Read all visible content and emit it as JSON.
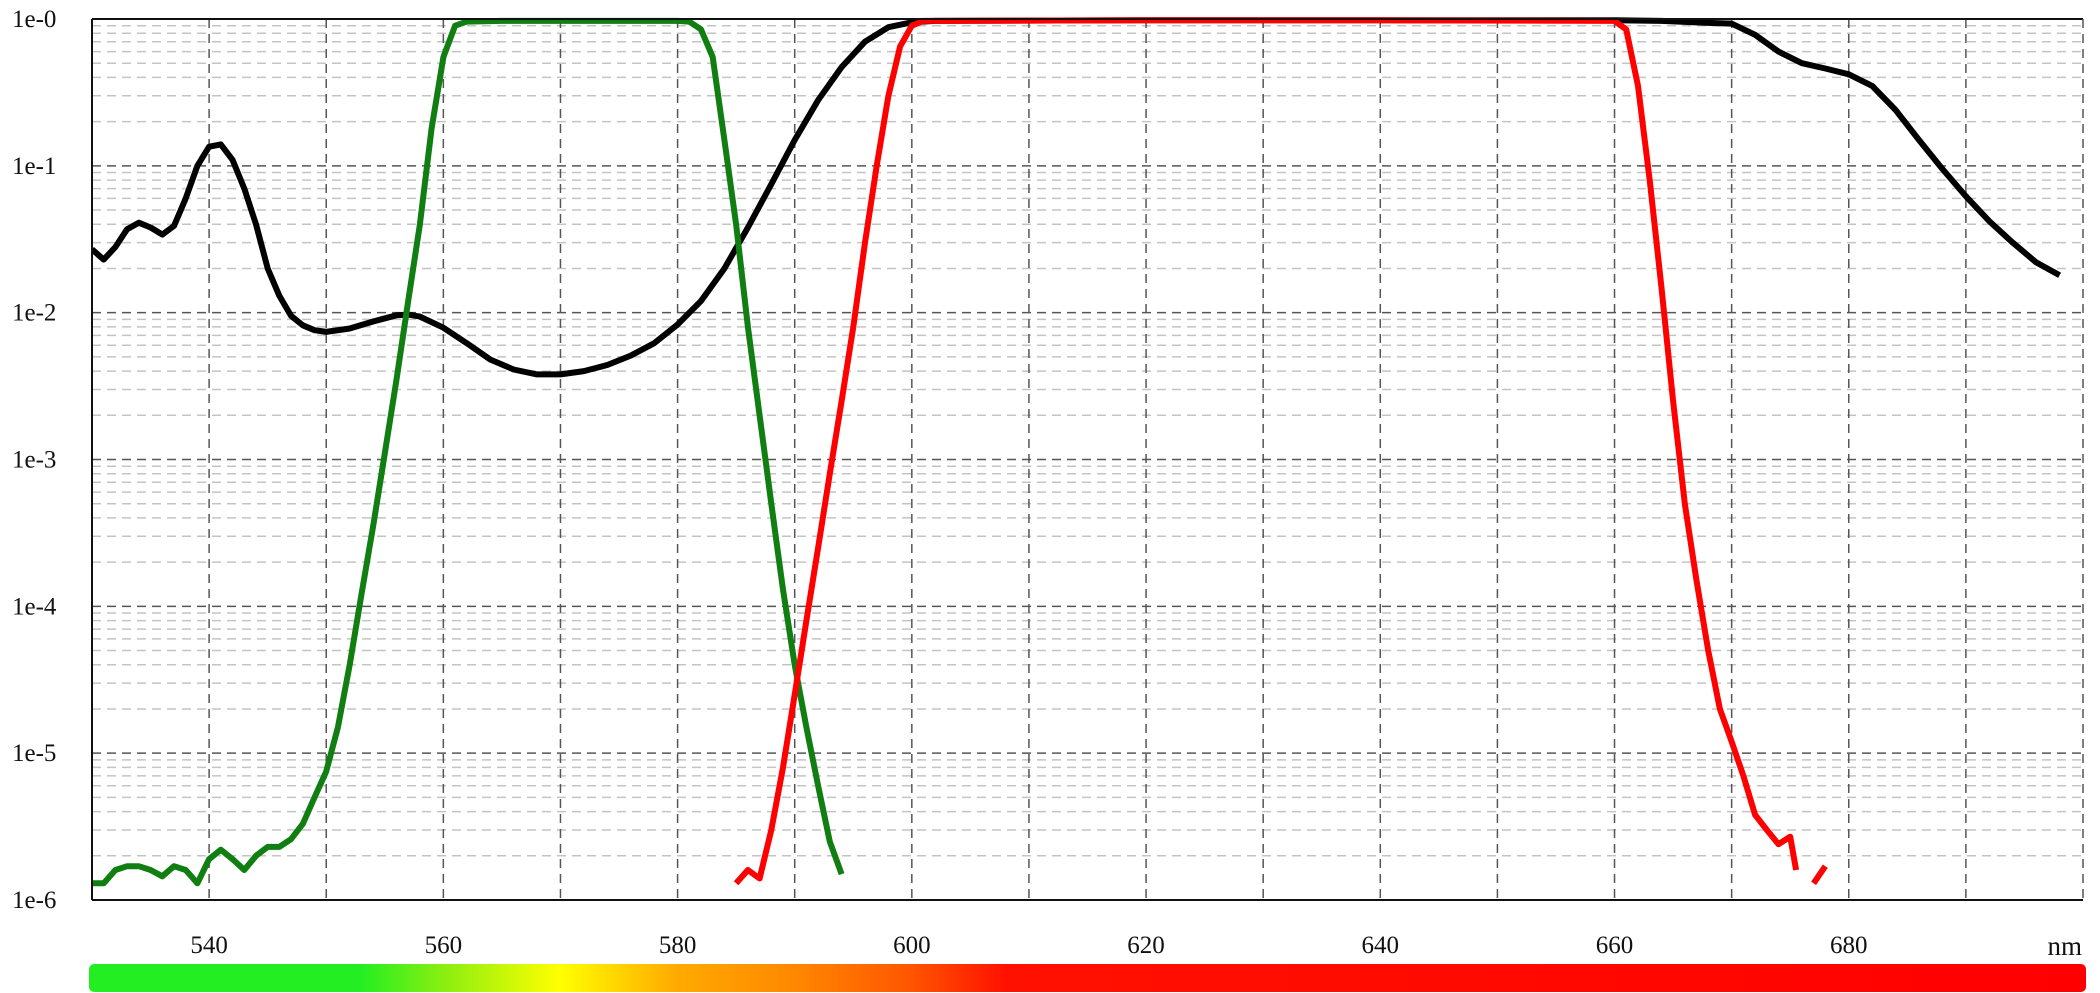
{
  "chart_data": {
    "type": "line",
    "xlabel": "nm",
    "ylabel": "",
    "title": "",
    "xlim": [
      530,
      700
    ],
    "ylim": [
      1e-06,
      1
    ],
    "y_scale": "log",
    "x_ticks": [
      540,
      560,
      580,
      600,
      620,
      640,
      660,
      680
    ],
    "x_tick_labels": [
      "540",
      "560",
      "580",
      "600",
      "620",
      "640",
      "660",
      "680"
    ],
    "y_ticks": [
      1,
      0.1,
      0.01,
      0.001,
      0.0001,
      1e-05,
      1e-06
    ],
    "y_tick_labels": [
      "1e-0",
      "1e-1",
      "1e-2",
      "1e-3",
      "1e-4",
      "1e-5",
      "1e-6"
    ],
    "grid": true,
    "spectrum_bar": {
      "stops": [
        {
          "nm": 530,
          "color": "#22ee22"
        },
        {
          "nm": 553,
          "color": "#22ee22"
        },
        {
          "nm": 560,
          "color": "#88ee11"
        },
        {
          "nm": 570,
          "color": "#ffff00"
        },
        {
          "nm": 580,
          "color": "#ffaa00"
        },
        {
          "nm": 590,
          "color": "#ff8800"
        },
        {
          "nm": 600,
          "color": "#ff5500"
        },
        {
          "nm": 608,
          "color": "#ff1100"
        },
        {
          "nm": 700,
          "color": "#ff0000"
        }
      ]
    },
    "series": [
      {
        "color": "#000000",
        "points": [
          [
            530,
            0.027
          ],
          [
            531,
            0.023
          ],
          [
            532,
            0.028
          ],
          [
            533,
            0.037
          ],
          [
            534,
            0.041
          ],
          [
            535,
            0.038
          ],
          [
            536,
            0.034
          ],
          [
            537,
            0.039
          ],
          [
            538,
            0.06
          ],
          [
            539,
            0.1
          ],
          [
            540,
            0.135
          ],
          [
            541,
            0.14
          ],
          [
            542,
            0.11
          ],
          [
            543,
            0.07
          ],
          [
            544,
            0.04
          ],
          [
            545,
            0.02
          ],
          [
            546,
            0.013
          ],
          [
            547,
            0.0095
          ],
          [
            548,
            0.0082
          ],
          [
            549,
            0.0076
          ],
          [
            550,
            0.0074
          ],
          [
            552,
            0.0078
          ],
          [
            554,
            0.0087
          ],
          [
            556,
            0.0096
          ],
          [
            557,
            0.0097
          ],
          [
            558,
            0.0094
          ],
          [
            560,
            0.0079
          ],
          [
            562,
            0.0062
          ],
          [
            564,
            0.0048
          ],
          [
            566,
            0.0041
          ],
          [
            568,
            0.0038
          ],
          [
            570,
            0.0038
          ],
          [
            572,
            0.004
          ],
          [
            574,
            0.0044
          ],
          [
            576,
            0.0051
          ],
          [
            578,
            0.0062
          ],
          [
            580,
            0.0083
          ],
          [
            582,
            0.012
          ],
          [
            584,
            0.02
          ],
          [
            586,
            0.038
          ],
          [
            588,
            0.075
          ],
          [
            590,
            0.15
          ],
          [
            592,
            0.28
          ],
          [
            594,
            0.47
          ],
          [
            596,
            0.7
          ],
          [
            598,
            0.88
          ],
          [
            600,
            0.95
          ],
          [
            602,
            0.97
          ],
          [
            620,
            0.98
          ],
          [
            640,
            0.98
          ],
          [
            660,
            0.98
          ],
          [
            664,
            0.97
          ],
          [
            668,
            0.94
          ],
          [
            670,
            0.93
          ],
          [
            672,
            0.78
          ],
          [
            674,
            0.6
          ],
          [
            676,
            0.5
          ],
          [
            678,
            0.46
          ],
          [
            680,
            0.42
          ],
          [
            682,
            0.35
          ],
          [
            684,
            0.24
          ],
          [
            686,
            0.15
          ],
          [
            688,
            0.095
          ],
          [
            690,
            0.062
          ],
          [
            692,
            0.042
          ],
          [
            694,
            0.03
          ],
          [
            696,
            0.022
          ],
          [
            698,
            0.018
          ]
        ]
      },
      {
        "color": "#107e10",
        "points": [
          [
            530,
            1.3e-06
          ],
          [
            531,
            1.3e-06
          ],
          [
            532,
            1.6e-06
          ],
          [
            533,
            1.7e-06
          ],
          [
            534,
            1.7e-06
          ],
          [
            535,
            1.6e-06
          ],
          [
            536,
            1.45e-06
          ],
          [
            537,
            1.7e-06
          ],
          [
            538,
            1.6e-06
          ],
          [
            539,
            1.3e-06
          ],
          [
            540,
            1.9e-06
          ],
          [
            541,
            2.2e-06
          ],
          [
            542,
            1.9e-06
          ],
          [
            543,
            1.6e-06
          ],
          [
            544,
            2e-06
          ],
          [
            545,
            2.3e-06
          ],
          [
            546,
            2.3e-06
          ],
          [
            547,
            2.6e-06
          ],
          [
            548,
            3.3e-06
          ],
          [
            549,
            5e-06
          ],
          [
            550,
            7.5e-06
          ],
          [
            551,
            1.5e-05
          ],
          [
            552,
            4e-05
          ],
          [
            553,
            0.00012
          ],
          [
            554,
            0.00035
          ],
          [
            555,
            0.0011
          ],
          [
            556,
            0.0035
          ],
          [
            557,
            0.012
          ],
          [
            558,
            0.04
          ],
          [
            559,
            0.18
          ],
          [
            560,
            0.55
          ],
          [
            561,
            0.9
          ],
          [
            562,
            0.96
          ],
          [
            565,
            0.97
          ],
          [
            570,
            0.97
          ],
          [
            575,
            0.97
          ],
          [
            580,
            0.97
          ],
          [
            581,
            0.96
          ],
          [
            582,
            0.85
          ],
          [
            583,
            0.55
          ],
          [
            584,
            0.15
          ],
          [
            585,
            0.04
          ],
          [
            586,
            0.008
          ],
          [
            587,
            0.002
          ],
          [
            588,
            0.0005
          ],
          [
            589,
            0.00013
          ],
          [
            590,
            4e-05
          ],
          [
            591,
            1.5e-05
          ],
          [
            592,
            6e-06
          ],
          [
            593,
            2.5e-06
          ],
          [
            594,
            1.5e-06
          ]
        ]
      },
      {
        "color": "#ff0000",
        "segments": [
          [
            [
              585,
              1.3e-06
            ],
            [
              586,
              1.6e-06
            ],
            [
              587,
              1.4e-06
            ],
            [
              588,
              3e-06
            ],
            [
              589,
              8e-06
            ],
            [
              590,
              2.5e-05
            ],
            [
              591,
              8e-05
            ],
            [
              592,
              0.00025
            ],
            [
              593,
              0.0008
            ],
            [
              594,
              0.0025
            ],
            [
              595,
              0.008
            ],
            [
              596,
              0.03
            ],
            [
              597,
              0.1
            ],
            [
              598,
              0.3
            ],
            [
              599,
              0.65
            ],
            [
              600,
              0.9
            ],
            [
              601,
              0.97
            ],
            [
              620,
              0.98
            ],
            [
              640,
              0.98
            ],
            [
              660,
              0.97
            ],
            [
              661,
              0.85
            ],
            [
              662,
              0.35
            ],
            [
              663,
              0.08
            ],
            [
              664,
              0.015
            ],
            [
              665,
              0.0025
            ],
            [
              666,
              0.0005
            ],
            [
              667,
              0.00015
            ],
            [
              668,
              5e-05
            ],
            [
              669,
              2e-05
            ],
            [
              670,
              1.2e-05
            ],
            [
              671,
              7e-06
            ],
            [
              672,
              3.8e-06
            ],
            [
              673,
              3e-06
            ],
            [
              674,
              2.4e-06
            ],
            [
              675,
              2.7e-06
            ],
            [
              675.5,
              1.6e-06
            ]
          ],
          [
            [
              677,
              1.3e-06
            ],
            [
              678,
              1.7e-06
            ]
          ]
        ]
      }
    ]
  }
}
